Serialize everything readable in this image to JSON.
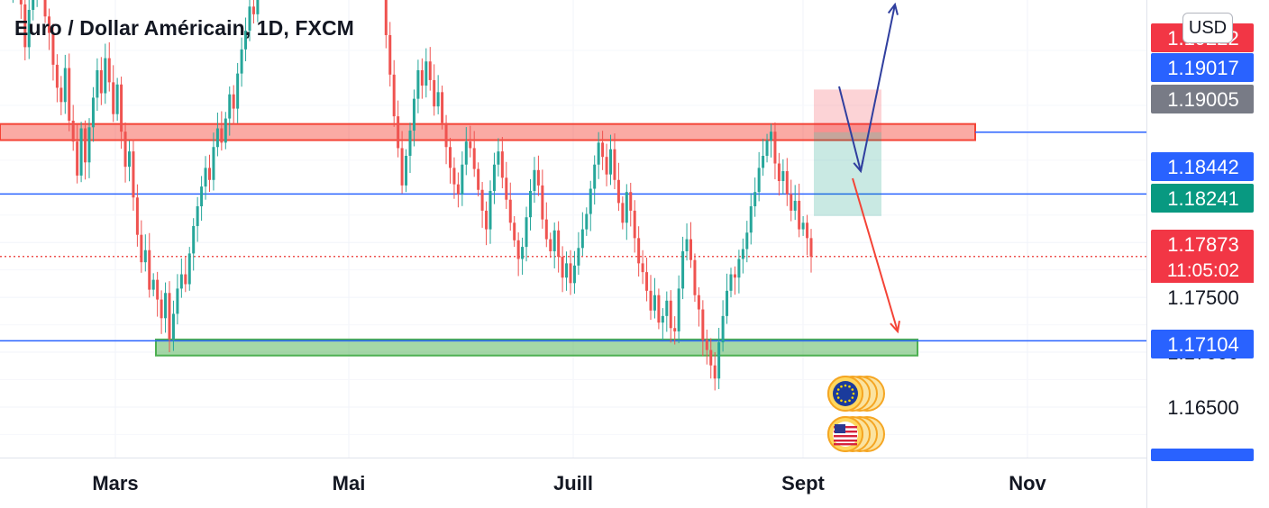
{
  "header": {
    "title": "Euro / Dollar Américain, 1D, FXCM",
    "currency_button": "USD"
  },
  "colors": {
    "up": "#26a69a",
    "down": "#ef5350",
    "blue_line": "#2962ff",
    "resistance_zone": "#f44336",
    "support_zone": "#4caf50",
    "drawing_blue": "#303f9f",
    "drawing_red": "#f44336"
  },
  "chart_data": {
    "type": "candlestick",
    "symbol": "EURUSD",
    "timeframe": "1D",
    "x_tick_labels": [
      "Mars",
      "Mai",
      "Juill",
      "Sept",
      "Nov"
    ],
    "y_tick_labels": [
      "1.16500",
      "1.17000",
      "1.17500",
      "1.18000"
    ],
    "ylim": [
      1.1604,
      1.2021
    ],
    "horizontal_lines": [
      1.19005,
      1.18442,
      1.17104
    ],
    "current_price_line": 1.17873,
    "price_labels": [
      {
        "value": "1.19222",
        "color": "#f23645"
      },
      {
        "value": "1.19017",
        "color": "#2962ff"
      },
      {
        "value": "1.19005",
        "color": "#787b86"
      },
      {
        "value": "1.18442",
        "color": "#2962ff"
      },
      {
        "value": "1.18241",
        "color": "#089981"
      },
      {
        "value": "1.17873",
        "color": "#f23645"
      },
      {
        "value": "1.17104",
        "color": "#2962ff"
      }
    ],
    "countdown": "11:05:02",
    "zones": [
      {
        "name": "resistance",
        "from": 1.18933,
        "to": 1.1908
      },
      {
        "name": "support",
        "from": 1.1697,
        "to": 1.17116
      }
    ],
    "position": {
      "entry": 1.19005,
      "stop": 1.19394,
      "target": 1.18241
    },
    "closes": [
      1.2034,
      1.2051,
      1.2039,
      1.2017,
      1.1978,
      1.2012,
      1.2023,
      1.2031,
      1.2048,
      1.2006,
      1.1991,
      1.1962,
      1.1941,
      1.1928,
      1.1959,
      1.1911,
      1.1892,
      1.1861,
      1.1904,
      1.1873,
      1.1905,
      1.1932,
      1.1957,
      1.1936,
      1.1968,
      1.1946,
      1.1917,
      1.1944,
      1.1901,
      1.1869,
      1.1883,
      1.1841,
      1.1807,
      1.1782,
      1.1793,
      1.1757,
      1.1766,
      1.1748,
      1.1731,
      1.1754,
      1.1712,
      1.1735,
      1.1758,
      1.1771,
      1.1762,
      1.179,
      1.1815,
      1.1833,
      1.1851,
      1.1868,
      1.1857,
      1.1887,
      1.1904,
      1.1891,
      1.1913,
      1.1935,
      1.1922,
      1.1954,
      1.1976,
      1.1993,
      1.2015,
      1.2008,
      1.2032,
      1.2047,
      1.2061,
      1.2075,
      1.2088,
      1.2102,
      1.2095,
      1.2118,
      1.213,
      1.2124,
      1.214,
      1.2132,
      1.2151,
      1.2145,
      1.2163,
      1.215,
      1.2171,
      1.2158,
      1.218,
      1.2166,
      1.2185,
      1.2173,
      1.219,
      1.2176,
      1.2192,
      1.2179,
      1.2188,
      1.217,
      1.2145,
      1.2112,
      1.2077,
      1.2039,
      1.1989,
      1.1953,
      1.1915,
      1.1886,
      1.1852,
      1.1879,
      1.1902,
      1.1931,
      1.1957,
      1.1943,
      1.1965,
      1.1948,
      1.1924,
      1.1937,
      1.1909,
      1.1887,
      1.1868,
      1.1853,
      1.1844,
      1.1871,
      1.1892,
      1.1886,
      1.1867,
      1.1848,
      1.1829,
      1.1812,
      1.1847,
      1.1871,
      1.1883,
      1.1859,
      1.1839,
      1.1818,
      1.1802,
      1.1785,
      1.1796,
      1.1823,
      1.1847,
      1.1866,
      1.1852,
      1.1821,
      1.1803,
      1.1792,
      1.1811,
      1.1787,
      1.1768,
      1.1781,
      1.1763,
      1.1779,
      1.1795,
      1.1812,
      1.1826,
      1.1849,
      1.1871,
      1.1891,
      1.1878,
      1.1862,
      1.1885,
      1.1857,
      1.1836,
      1.1818,
      1.1846,
      1.1829,
      1.1804,
      1.1781,
      1.1773,
      1.1756,
      1.1738,
      1.1752,
      1.1727,
      1.1733,
      1.1747,
      1.1722,
      1.1719,
      1.1758,
      1.1792,
      1.1803,
      1.1784,
      1.1752,
      1.1739,
      1.1711,
      1.1702,
      1.1688,
      1.1676,
      1.1709,
      1.1733,
      1.1756,
      1.1771,
      1.1768,
      1.1785,
      1.1794,
      1.1809,
      1.1833,
      1.1846,
      1.1868,
      1.1879,
      1.1893,
      1.1901,
      1.1872,
      1.1856,
      1.1865,
      1.1844,
      1.1829,
      1.1838,
      1.1812,
      1.1818,
      1.1804,
      1.1787
    ]
  }
}
